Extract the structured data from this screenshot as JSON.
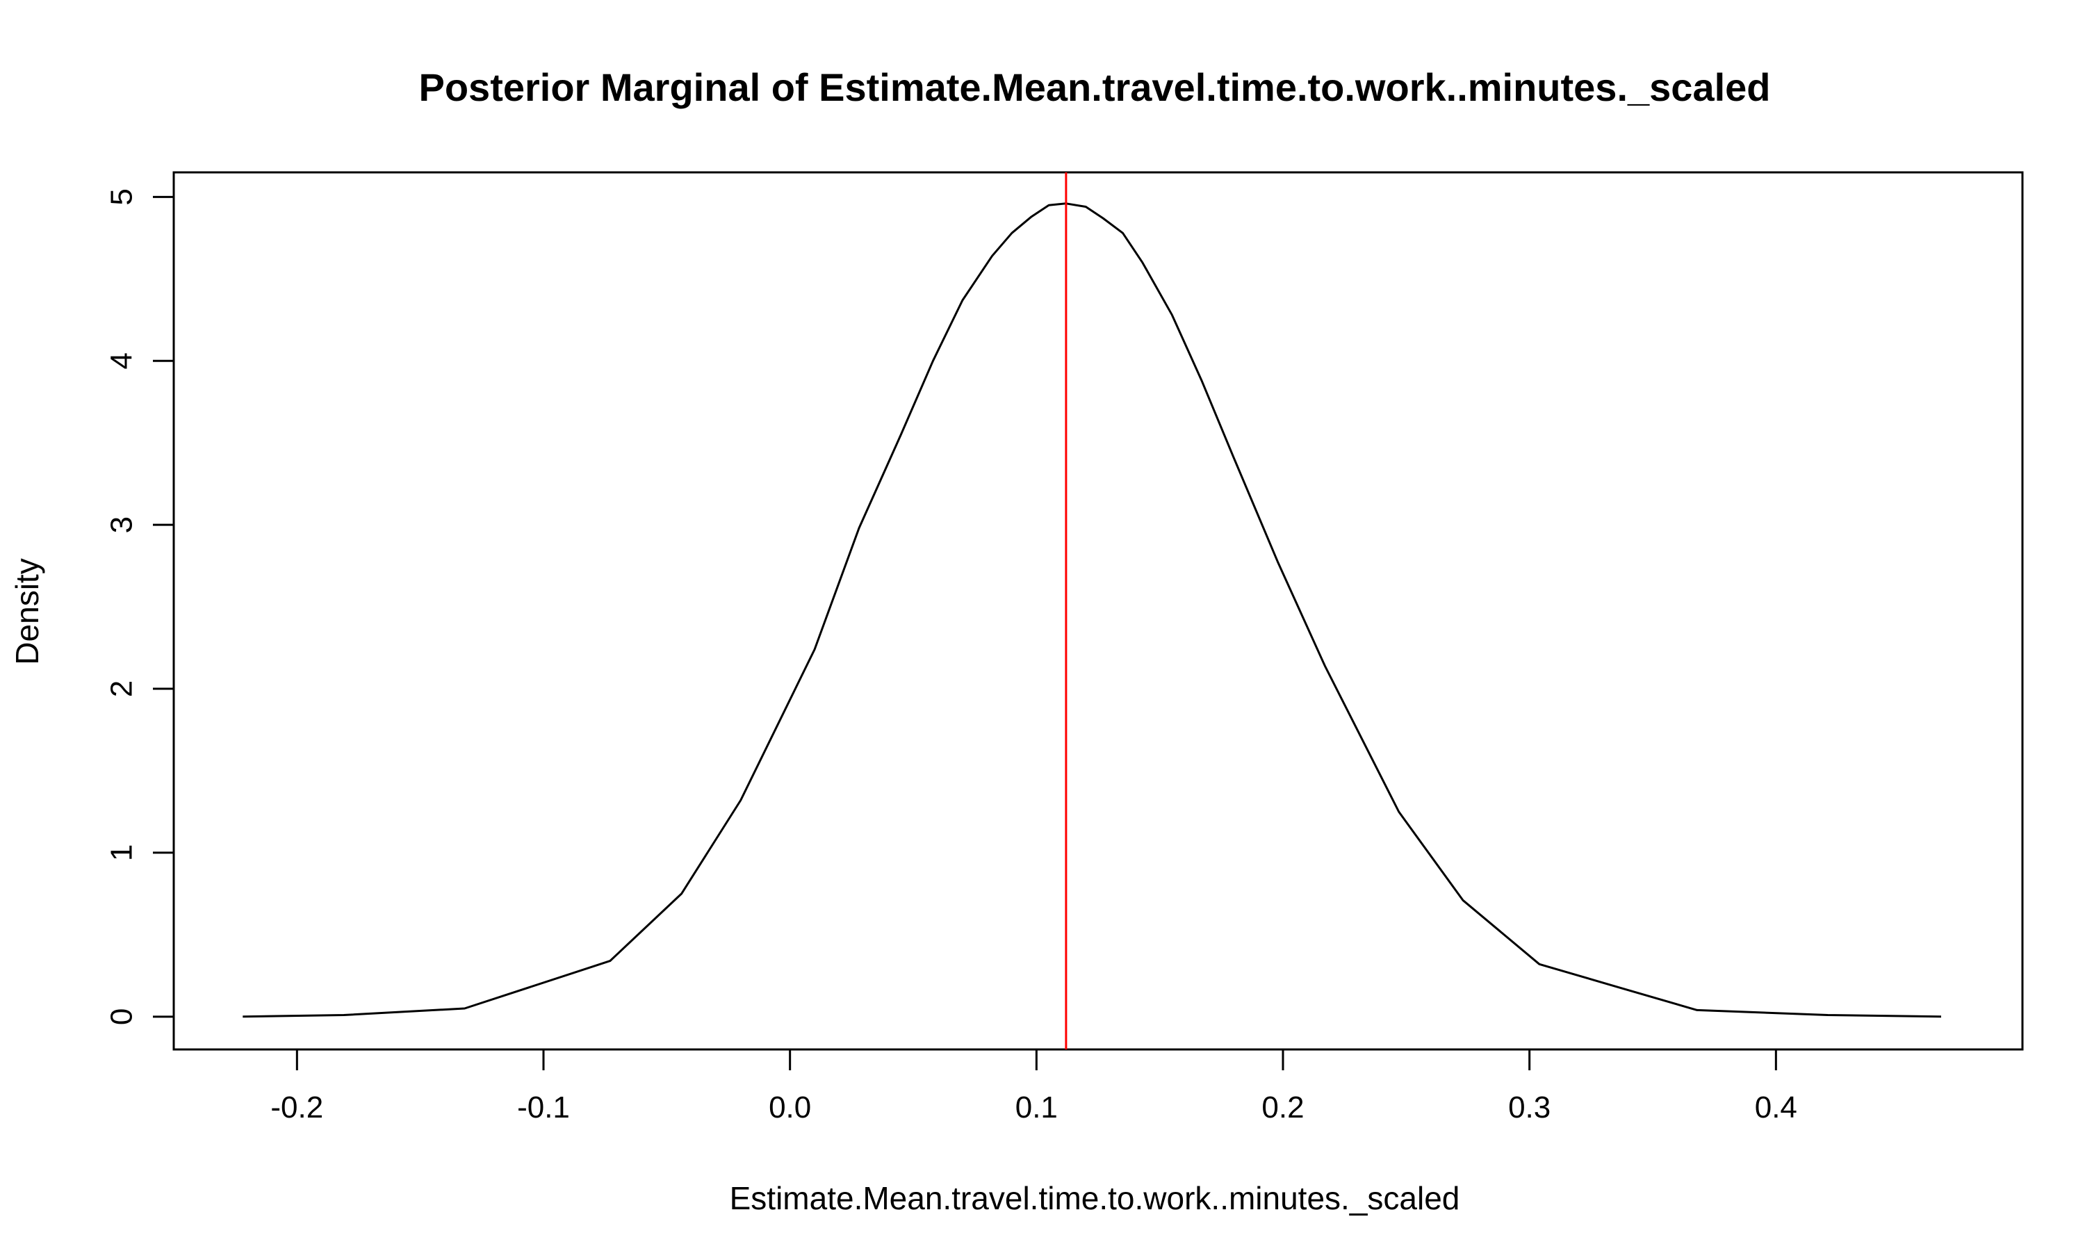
{
  "chart_data": {
    "type": "line",
    "title": "Posterior Marginal of Estimate.Mean.travel.time.to.work..minutes._scaled",
    "xlabel": "Estimate.Mean.travel.time.to.work..minutes._scaled",
    "ylabel": "Density",
    "xlim": [
      -0.25,
      0.5
    ],
    "ylim": [
      -0.2,
      5.15
    ],
    "x_ticks": [
      -0.2,
      -0.1,
      0.0,
      0.1,
      0.2,
      0.3,
      0.4
    ],
    "x_tick_labels": [
      "-0.2",
      "-0.1",
      "0.0",
      "0.1",
      "0.2",
      "0.3",
      "0.4"
    ],
    "y_ticks": [
      0,
      1,
      2,
      3,
      4,
      5
    ],
    "y_tick_labels": [
      "0",
      "1",
      "2",
      "3",
      "4",
      "5"
    ],
    "grid": false,
    "series": [
      {
        "color": "#000000",
        "x": [
          -0.222,
          -0.181,
          -0.132,
          -0.073,
          -0.044,
          -0.02,
          0.01,
          0.028,
          0.045,
          0.058,
          0.07,
          0.082,
          0.09,
          0.098,
          0.105,
          0.112,
          0.12,
          0.127,
          0.135,
          0.143,
          0.155,
          0.167,
          0.18,
          0.198,
          0.217,
          0.247,
          0.273,
          0.304,
          0.336,
          0.368,
          0.421,
          0.467
        ],
        "y": [
          0.0,
          0.01,
          0.05,
          0.34,
          0.75,
          1.32,
          2.24,
          2.98,
          3.55,
          4.0,
          4.37,
          4.64,
          4.78,
          4.88,
          4.95,
          4.96,
          4.94,
          4.87,
          4.78,
          4.6,
          4.28,
          3.88,
          3.41,
          2.77,
          2.14,
          1.25,
          0.71,
          0.32,
          0.18,
          0.04,
          0.01,
          0.0
        ]
      }
    ],
    "reference_line": {
      "orientation": "vertical",
      "x": 0.112,
      "color": "#ff0000"
    }
  }
}
